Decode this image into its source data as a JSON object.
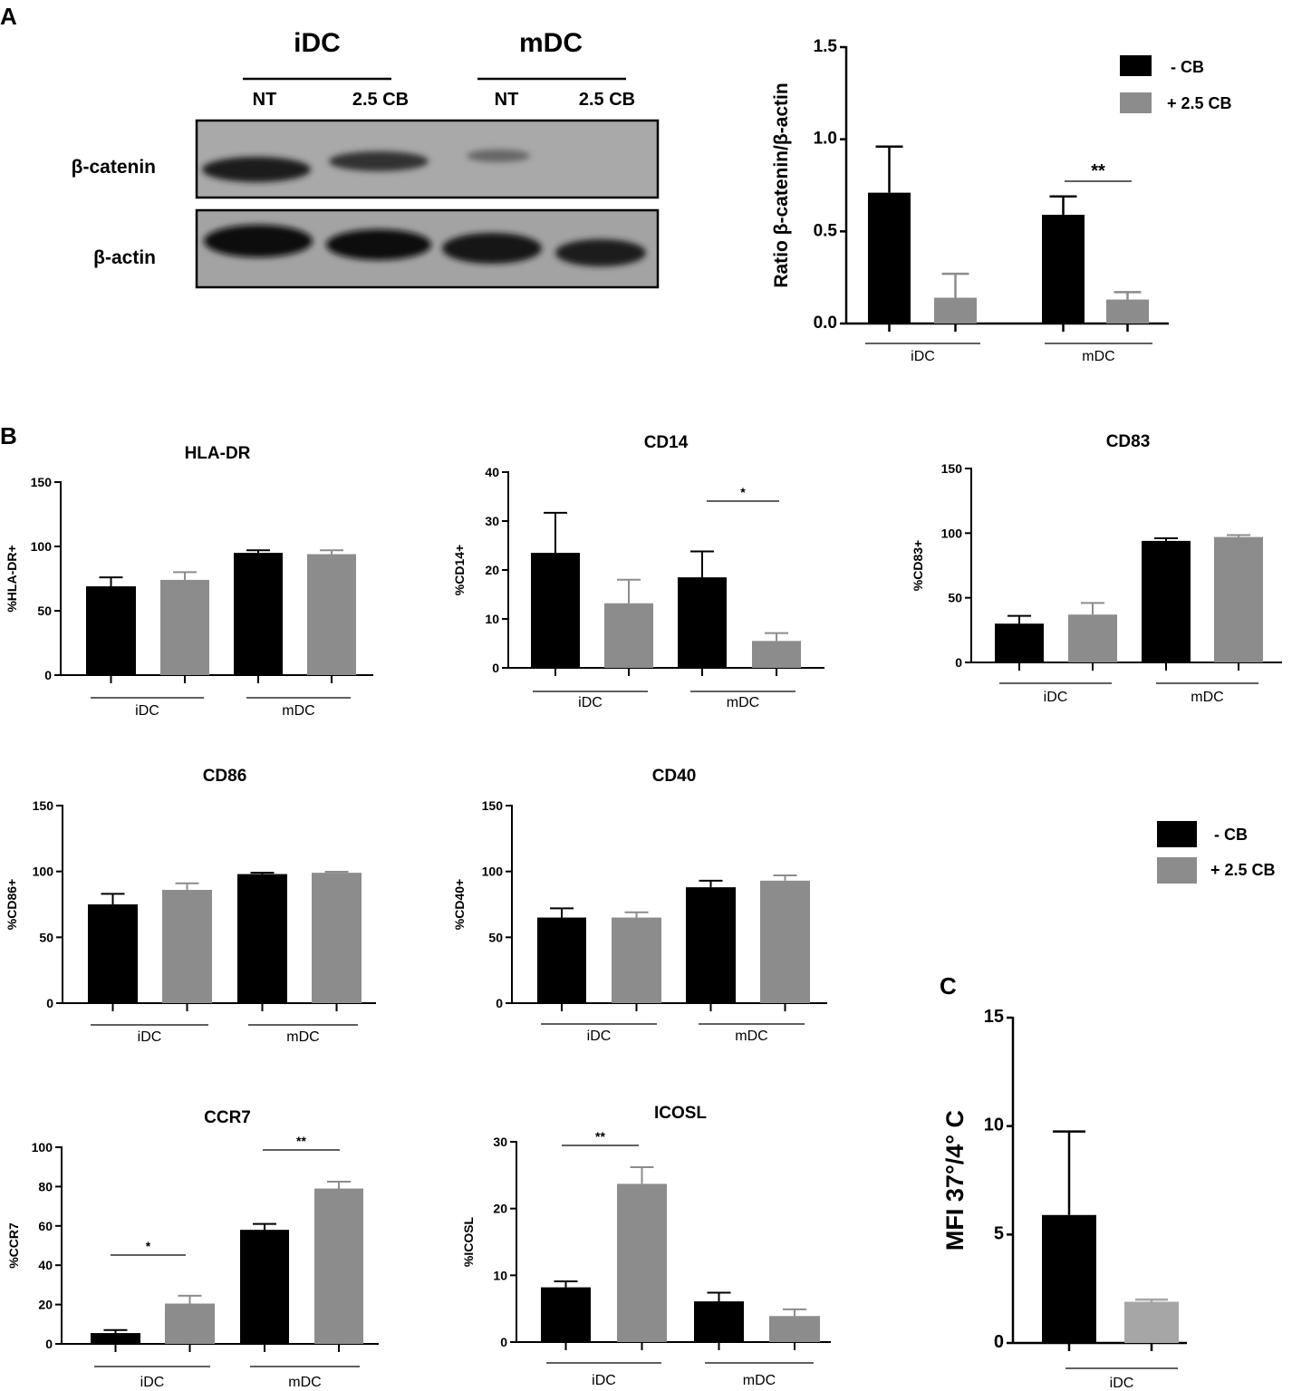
{
  "panel_labels": {
    "a": "A",
    "b": "B",
    "c": "C"
  },
  "blot": {
    "groups": [
      "iDC",
      "mDC"
    ],
    "lanes": [
      "NT",
      "2.5 CB",
      "NT",
      "2.5 CB"
    ],
    "proteins": [
      "β-catenin",
      "β-actin"
    ]
  },
  "legend": {
    "items": [
      "- CB",
      "+ 2.5 CB"
    ],
    "colors": [
      "#000000",
      "#8c8c8c"
    ]
  },
  "colors": {
    "minus_cb": "#000000",
    "plus_cb": "#8c8c8c",
    "plus_cb_c": "#a6a6a6"
  },
  "chart_data": [
    {
      "id": "A",
      "type": "bar",
      "title": "",
      "ylabel": "Ratio β-catenin/β-actin",
      "ylim": [
        0,
        1.5
      ],
      "yticks": [
        "0.0",
        "0.5",
        "1.0",
        "1.5"
      ],
      "groups": [
        "iDC",
        "mDC"
      ],
      "series": [
        {
          "name": "- CB",
          "values": [
            0.71,
            0.59
          ],
          "errors": [
            0.25,
            0.1
          ]
        },
        {
          "name": "+ 2.5 CB",
          "values": [
            0.14,
            0.13
          ],
          "errors": [
            0.13,
            0.04
          ]
        }
      ],
      "significance": [
        {
          "label": "**",
          "group": 1
        }
      ]
    },
    {
      "id": "HLA-DR",
      "type": "bar",
      "title": "HLA-DR",
      "ylabel": "%HLA-DR+",
      "ylim": [
        0,
        150
      ],
      "yticks": [
        "0",
        "50",
        "100",
        "150"
      ],
      "groups": [
        "iDC",
        "mDC"
      ],
      "series": [
        {
          "name": "- CB",
          "values": [
            69,
            95
          ],
          "errors": [
            7,
            2
          ]
        },
        {
          "name": "+ 2.5 CB",
          "values": [
            74,
            94
          ],
          "errors": [
            6,
            3
          ]
        }
      ],
      "significance": []
    },
    {
      "id": "CD14",
      "type": "bar",
      "title": "CD14",
      "ylabel": "%CD14+",
      "ylim": [
        0,
        40
      ],
      "yticks": [
        "0",
        "10",
        "20",
        "30",
        "40"
      ],
      "groups": [
        "iDC",
        "mDC"
      ],
      "series": [
        {
          "name": "- CB",
          "values": [
            23.5,
            18.5
          ],
          "errors": [
            8.2,
            5.3
          ]
        },
        {
          "name": "+ 2.5 CB",
          "values": [
            13.2,
            5.5
          ],
          "errors": [
            4.8,
            1.6
          ]
        }
      ],
      "significance": [
        {
          "label": "*",
          "group": 1
        }
      ]
    },
    {
      "id": "CD83",
      "type": "bar",
      "title": "CD83",
      "ylabel": "%CD83+",
      "ylim": [
        0,
        150
      ],
      "yticks": [
        "0",
        "50",
        "100",
        "150"
      ],
      "groups": [
        "iDC",
        "mDC"
      ],
      "series": [
        {
          "name": "- CB",
          "values": [
            30,
            94
          ],
          "errors": [
            6,
            2
          ]
        },
        {
          "name": "+ 2.5 CB",
          "values": [
            37,
            97
          ],
          "errors": [
            9,
            1.5
          ]
        }
      ],
      "significance": []
    },
    {
      "id": "CD86",
      "type": "bar",
      "title": "CD86",
      "ylabel": "%CD86+",
      "ylim": [
        0,
        150
      ],
      "yticks": [
        "0",
        "50",
        "100",
        "150"
      ],
      "groups": [
        "iDC",
        "mDC"
      ],
      "series": [
        {
          "name": "- CB",
          "values": [
            75,
            98
          ],
          "errors": [
            8,
            1
          ]
        },
        {
          "name": "+ 2.5 CB",
          "values": [
            86,
            99
          ],
          "errors": [
            5,
            0.8
          ]
        }
      ],
      "significance": []
    },
    {
      "id": "CD40",
      "type": "bar",
      "title": "CD40",
      "ylabel": "%CD40+",
      "ylim": [
        0,
        150
      ],
      "yticks": [
        "0",
        "50",
        "100",
        "150"
      ],
      "groups": [
        "iDC",
        "mDC"
      ],
      "series": [
        {
          "name": "- CB",
          "values": [
            65,
            88
          ],
          "errors": [
            7,
            5
          ]
        },
        {
          "name": "+ 2.5 CB",
          "values": [
            65,
            93
          ],
          "errors": [
            4,
            4
          ]
        }
      ],
      "significance": []
    },
    {
      "id": "CCR7",
      "type": "bar",
      "title": "CCR7",
      "ylabel": "%CCR7",
      "ylim": [
        0,
        100
      ],
      "yticks": [
        "0",
        "20",
        "40",
        "60",
        "80",
        "100"
      ],
      "groups": [
        "iDC",
        "mDC"
      ],
      "series": [
        {
          "name": "- CB",
          "values": [
            5.5,
            58
          ],
          "errors": [
            1.5,
            3
          ]
        },
        {
          "name": "+ 2.5 CB",
          "values": [
            20.5,
            79
          ],
          "errors": [
            4,
            3.5
          ]
        }
      ],
      "significance": [
        {
          "label": "*",
          "group": 0
        },
        {
          "label": "**",
          "group": 1
        }
      ]
    },
    {
      "id": "ICOSL",
      "type": "bar",
      "title": "ICOSL",
      "ylabel": "%ICOSL",
      "ylim": [
        0,
        30
      ],
      "yticks": [
        "0",
        "10",
        "20",
        "30"
      ],
      "groups": [
        "iDC",
        "mDC"
      ],
      "series": [
        {
          "name": "- CB",
          "values": [
            8.2,
            6.1
          ],
          "errors": [
            0.9,
            1.3
          ]
        },
        {
          "name": "+ 2.5 CB",
          "values": [
            23.7,
            3.9
          ],
          "errors": [
            2.5,
            1.0
          ]
        }
      ],
      "significance": [
        {
          "label": "**",
          "group": 0
        }
      ]
    },
    {
      "id": "C",
      "type": "bar",
      "title": "",
      "ylabel": "MFI 37°/4° C",
      "ylim": [
        0,
        15
      ],
      "yticks": [
        "0",
        "5",
        "10",
        "15"
      ],
      "groups": [
        "iDC"
      ],
      "series": [
        {
          "name": "- CB",
          "values": [
            5.9
          ],
          "errors": [
            3.85
          ]
        },
        {
          "name": "+ 2.5 CB",
          "values": [
            1.9
          ],
          "errors": [
            0.1
          ]
        }
      ],
      "significance": []
    }
  ]
}
